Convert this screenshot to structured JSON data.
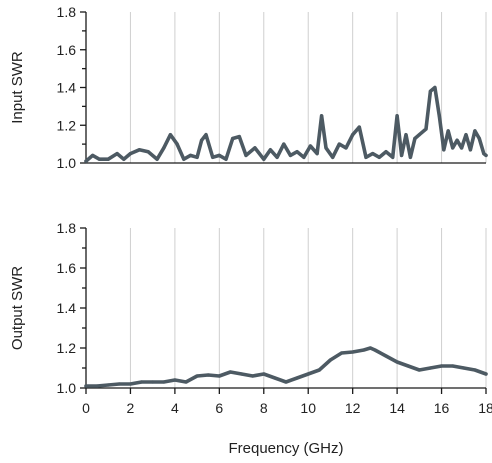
{
  "chart_data": [
    {
      "type": "line",
      "title": "",
      "xlabel": "",
      "ylabel": "Input SWR",
      "xlim": [
        0,
        18
      ],
      "ylim": [
        1.0,
        1.8
      ],
      "x_ticks": [],
      "y_ticks": [
        "1.0",
        "1.2",
        "1.4",
        "1.6",
        "1.8"
      ],
      "grid": {
        "vertical": true,
        "horizontal": false
      },
      "series_color": "#4d5a63",
      "x": [
        0,
        0.3,
        0.6,
        1.0,
        1.4,
        1.7,
        2.0,
        2.4,
        2.8,
        3.2,
        3.5,
        3.8,
        4.1,
        4.4,
        4.7,
        5.0,
        5.2,
        5.4,
        5.7,
        6.0,
        6.3,
        6.6,
        6.9,
        7.2,
        7.6,
        8.0,
        8.3,
        8.6,
        8.9,
        9.2,
        9.5,
        9.8,
        10.1,
        10.4,
        10.6,
        10.8,
        11.1,
        11.4,
        11.7,
        12.0,
        12.3,
        12.6,
        12.9,
        13.2,
        13.5,
        13.8,
        14.0,
        14.2,
        14.4,
        14.6,
        14.8,
        15.0,
        15.3,
        15.5,
        15.7,
        15.9,
        16.1,
        16.3,
        16.5,
        16.7,
        16.9,
        17.1,
        17.3,
        17.5,
        17.7,
        17.9,
        18.0
      ],
      "y": [
        1.01,
        1.04,
        1.02,
        1.02,
        1.05,
        1.02,
        1.05,
        1.07,
        1.06,
        1.02,
        1.08,
        1.15,
        1.1,
        1.02,
        1.04,
        1.03,
        1.12,
        1.15,
        1.03,
        1.04,
        1.02,
        1.13,
        1.14,
        1.04,
        1.08,
        1.02,
        1.07,
        1.03,
        1.1,
        1.04,
        1.06,
        1.03,
        1.09,
        1.05,
        1.25,
        1.08,
        1.03,
        1.1,
        1.08,
        1.15,
        1.19,
        1.03,
        1.05,
        1.03,
        1.06,
        1.03,
        1.25,
        1.04,
        1.15,
        1.03,
        1.13,
        1.15,
        1.18,
        1.38,
        1.4,
        1.25,
        1.07,
        1.17,
        1.08,
        1.12,
        1.08,
        1.15,
        1.07,
        1.17,
        1.13,
        1.05,
        1.04
      ]
    },
    {
      "type": "line",
      "title": "",
      "xlabel": "Frequency (GHz)",
      "ylabel": "Output SWR",
      "xlim": [
        0,
        18
      ],
      "ylim": [
        1.0,
        1.8
      ],
      "x_ticks": [
        "0",
        "2",
        "4",
        "6",
        "8",
        "10",
        "12",
        "14",
        "16",
        "18"
      ],
      "y_ticks": [
        "1.0",
        "1.2",
        "1.4",
        "1.6",
        "1.8"
      ],
      "grid": {
        "vertical": true,
        "horizontal": false
      },
      "series_color": "#4d5a63",
      "x": [
        0,
        0.5,
        1.0,
        1.5,
        2.0,
        2.5,
        3.0,
        3.5,
        4.0,
        4.5,
        5.0,
        5.5,
        6.0,
        6.5,
        7.0,
        7.5,
        8.0,
        8.5,
        9.0,
        9.5,
        10.0,
        10.5,
        11.0,
        11.5,
        12.0,
        12.5,
        12.8,
        13.0,
        13.5,
        14.0,
        14.5,
        15.0,
        15.5,
        16.0,
        16.5,
        17.0,
        17.5,
        18.0
      ],
      "y": [
        1.01,
        1.01,
        1.015,
        1.02,
        1.02,
        1.03,
        1.03,
        1.03,
        1.04,
        1.03,
        1.06,
        1.065,
        1.06,
        1.08,
        1.07,
        1.06,
        1.07,
        1.05,
        1.03,
        1.05,
        1.07,
        1.09,
        1.14,
        1.175,
        1.18,
        1.19,
        1.2,
        1.19,
        1.16,
        1.13,
        1.11,
        1.09,
        1.1,
        1.11,
        1.11,
        1.1,
        1.09,
        1.07
      ]
    }
  ]
}
